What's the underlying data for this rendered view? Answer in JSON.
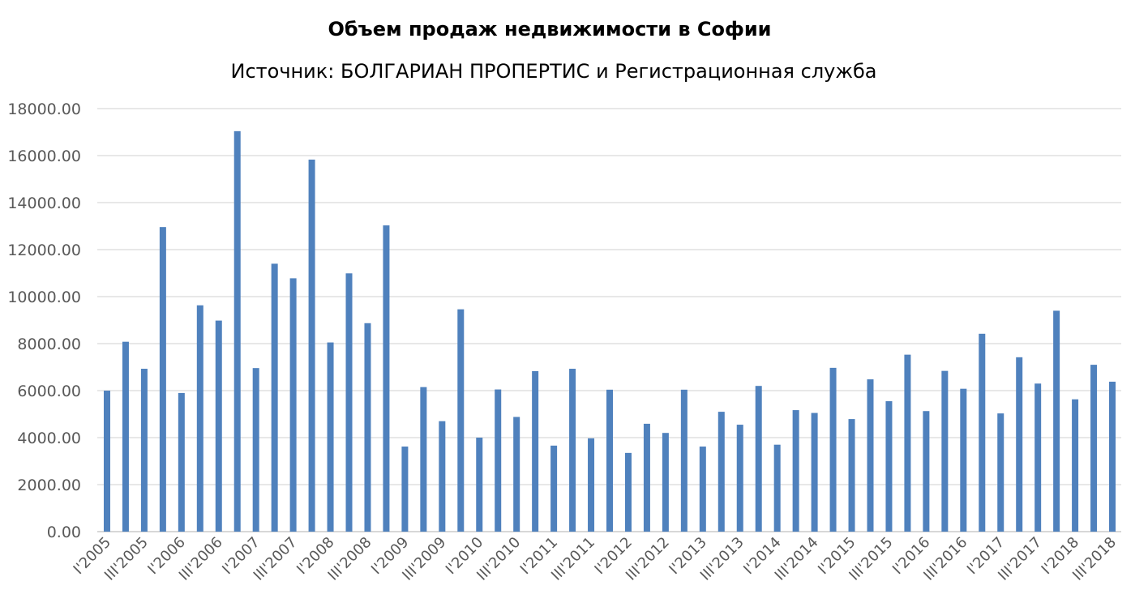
{
  "chart_data": {
    "type": "bar",
    "title": "Объем продаж недвижимости в Софии",
    "subtitle": "Источник: БОЛГАРИАН ПРОПЕРТИС и Регистрационная служба",
    "xlabel": "",
    "ylabel": "",
    "ylim": [
      0,
      18000
    ],
    "y_ticks": [
      "0.00",
      "2000.00",
      "4000.00",
      "6000.00",
      "8000.00",
      "10000.00",
      "12000.00",
      "14000.00",
      "16000.00",
      "18000.00"
    ],
    "x_tick_labels": [
      "I'2005",
      "III'2005",
      "I'2006",
      "III'2006",
      "I'2007",
      "III'2007",
      "I'2008",
      "III'2008",
      "I'2009",
      "III'2009",
      "I'2010",
      "III'2010",
      "I'2011",
      "III'2011",
      "I'2012",
      "III'2012",
      "I'2013",
      "III'2013",
      "I'2014",
      "III'2014",
      "I'2015",
      "III'2015",
      "I'2016",
      "III'2016",
      "I'2017",
      "III'2017",
      "I'2018",
      "III'2018"
    ],
    "values": [
      6000,
      8080,
      6930,
      12960,
      5900,
      9630,
      8980,
      17040,
      6960,
      11400,
      10780,
      15830,
      8050,
      10990,
      8870,
      13030,
      3620,
      6150,
      4700,
      9460,
      4000,
      6050,
      4880,
      6830,
      3660,
      6930,
      3970,
      6040,
      3350,
      4590,
      4200,
      6040,
      3620,
      5100,
      4550,
      6200,
      3700,
      5170,
      5050,
      6970,
      4790,
      6480,
      5550,
      7530,
      5130,
      6840,
      6080,
      8420,
      5030,
      7420,
      6300,
      9400,
      5630,
      7100,
      6380
    ],
    "grid": true,
    "legend": "none",
    "colors": {
      "bar": "#4f81bd",
      "grid": "#d9d9d9",
      "axis_text": "#595959"
    }
  }
}
